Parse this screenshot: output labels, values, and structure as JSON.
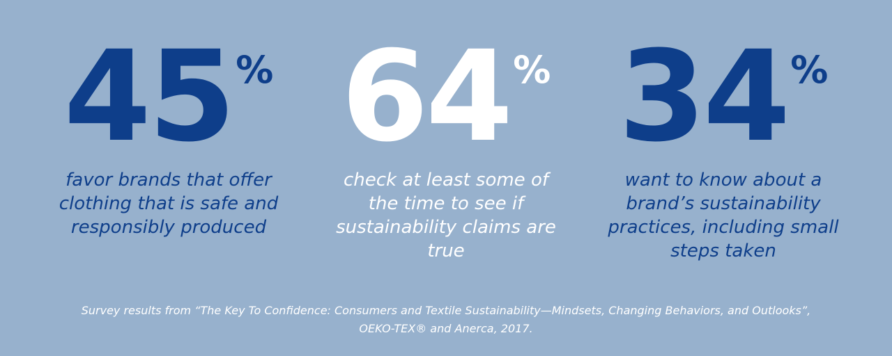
{
  "stats": [
    {
      "value": "45",
      "unit": "%",
      "description_lines": [
        "favor brands that offer",
        "clothing that is safe and",
        "responsibly produced"
      ],
      "color": "#0e3e8a"
    },
    {
      "value": "64",
      "unit": "%",
      "description_lines": [
        "check at least some of",
        "the time to see if",
        "sustainability claims are",
        "true"
      ],
      "color": "#ffffff"
    },
    {
      "value": "34",
      "unit": "%",
      "description_lines": [
        "want to know about a",
        "brand’s sustainability",
        "practices, including small",
        "steps taken"
      ],
      "color": "#0e3e8a"
    }
  ],
  "source": {
    "lines": [
      "Survey results from “The Key To Confidence: Consumers and Textile Sustainability—Mindsets, Changing Behaviors, and Outlooks”,",
      "OEKO-TEX® and Anerca, 2017."
    ]
  },
  "colors": {
    "background": "#97b1cd",
    "accent_blue": "#0e3e8a",
    "white": "#ffffff"
  }
}
